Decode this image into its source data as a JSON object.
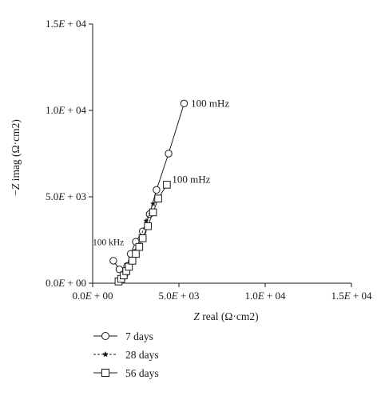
{
  "chart_data": {
    "type": "scatter",
    "xlabel": "Z real (Ω·cm2)",
    "ylabel": "−Z imag (Ω·cm2)",
    "xlim": [
      0,
      15000
    ],
    "ylim": [
      0,
      15000
    ],
    "x_ticks": [
      {
        "value": 0,
        "label": "0.0E + 00"
      },
      {
        "value": 5000,
        "label": "5.0E + 03"
      },
      {
        "value": 10000,
        "label": "1.0E + 04"
      },
      {
        "value": 15000,
        "label": "1.5E + 04"
      }
    ],
    "y_ticks": [
      {
        "value": 0,
        "label": "0.0E + 00"
      },
      {
        "value": 5000,
        "label": "5.0E + 03"
      },
      {
        "value": 10000,
        "label": "1.0E + 04"
      },
      {
        "value": 15000,
        "label": "1.5E + 04"
      }
    ],
    "grid": false,
    "legend_position": "bottom-left",
    "series": [
      {
        "name": "7 days",
        "marker": "circle",
        "line": "solid",
        "x": [
          1200,
          1550,
          1700,
          1850,
          2000,
          2200,
          2500,
          2900,
          3300,
          3700,
          4400,
          5300
        ],
        "y": [
          1300,
          800,
          300,
          500,
          1000,
          1700,
          2400,
          3000,
          4000,
          5400,
          7500,
          10400
        ]
      },
      {
        "name": "28 days",
        "marker": "star",
        "line": "dashed",
        "x": [
          1600,
          1700,
          1850,
          2000,
          2200,
          2500,
          2800,
          3100,
          3500
        ],
        "y": [
          200,
          350,
          500,
          800,
          1300,
          1900,
          2700,
          3600,
          4600
        ]
      },
      {
        "name": "56 days",
        "marker": "square",
        "line": "solid",
        "x": [
          1500,
          1650,
          1800,
          1950,
          2100,
          2300,
          2500,
          2700,
          2900,
          3200,
          3500,
          3800,
          4300
        ],
        "y": [
          100,
          250,
          450,
          700,
          950,
          1300,
          1700,
          2100,
          2600,
          3300,
          4100,
          4900,
          5700
        ]
      }
    ],
    "annotations": [
      {
        "text": "100 mHz",
        "x": 5700,
        "y": 10200
      },
      {
        "text": "100 mHz",
        "x": 4600,
        "y": 5800
      },
      {
        "text": "100 kHz",
        "x": 0,
        "y": 2200
      }
    ]
  }
}
